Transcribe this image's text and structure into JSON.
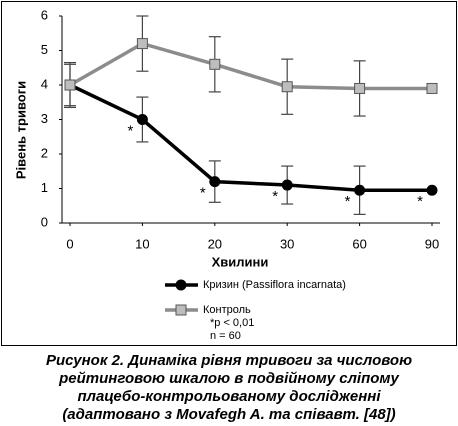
{
  "chart_data": {
    "type": "line",
    "x_label": "Хвилини",
    "y_label": "Рівень тривоги",
    "categories": [
      "0",
      "10",
      "20",
      "30",
      "60",
      "90"
    ],
    "series": [
      {
        "name": "Кризин (Passiflora incarnata)",
        "color": "#000000",
        "marker": "circle",
        "values": [
          4.0,
          3.0,
          1.2,
          1.1,
          0.95,
          0.95
        ],
        "errors": [
          0.6,
          0.65,
          0.6,
          0.55,
          0.7,
          null
        ],
        "markers": [
          null,
          "*",
          "*",
          "*",
          "*",
          "*"
        ]
      },
      {
        "name": "Контроль",
        "color": "#8c8c8c",
        "marker": "square",
        "values": [
          4.0,
          5.2,
          4.6,
          3.95,
          3.9,
          3.9
        ],
        "errors": [
          0.65,
          0.8,
          0.8,
          0.8,
          0.8,
          null
        ]
      }
    ],
    "ylim": [
      0,
      6
    ],
    "yticks": [
      0,
      1,
      2,
      3,
      4,
      5,
      6
    ],
    "legend_notes": [
      "*p < 0,01",
      "n = 60"
    ]
  },
  "caption": [
    "Рисунок 2. Динаміка рівня тривоги за числовою",
    "рейтинговою шкалою в подвійному сліпому",
    "плацебо-контрольованому дослідженні",
    "(адаптовано з Movafegh A. та співавт. [48])"
  ]
}
